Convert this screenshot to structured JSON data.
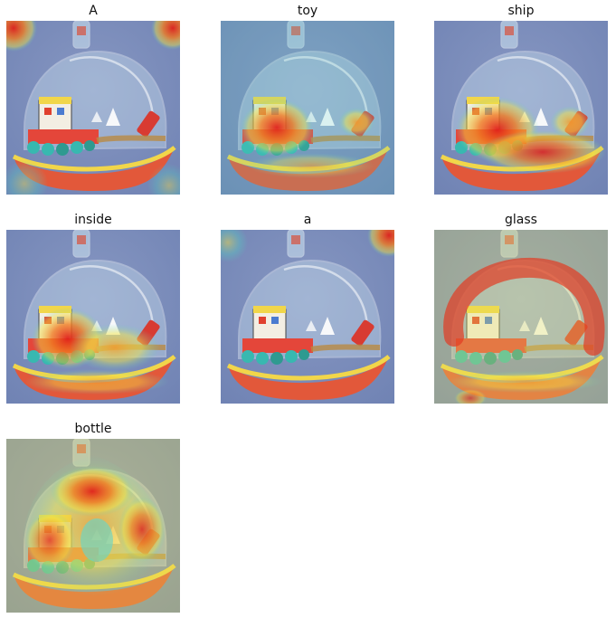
{
  "panels": [
    {
      "word": "A",
      "heat": "corners"
    },
    {
      "word": "toy",
      "heat": "toy"
    },
    {
      "word": "ship",
      "heat": "ship"
    },
    {
      "word": "inside",
      "heat": "inside"
    },
    {
      "word": "a",
      "heat": "corner"
    },
    {
      "word": "glass",
      "heat": "glass"
    },
    {
      "word": "bottle",
      "heat": "bottle"
    }
  ],
  "colors": {
    "background": "#6f82b3",
    "hull": "#e2583a",
    "deck": "#f1d64a",
    "glass": "#cfe6f2"
  }
}
